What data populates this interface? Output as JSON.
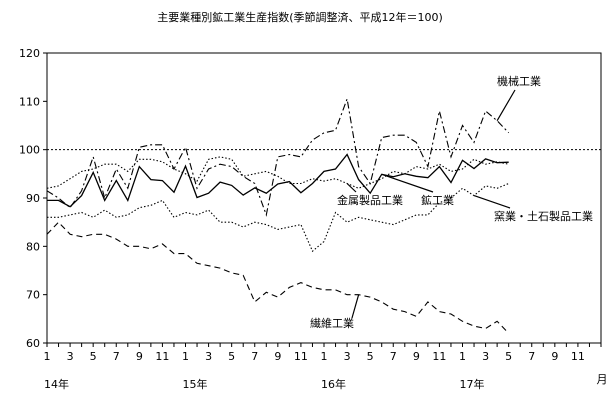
{
  "chart_data": {
    "type": "line",
    "title": "主要業種別鉱工業生産指数(季節調整済、平成12年＝100)",
    "xlabel": "",
    "ylabel": "",
    "ylim": [
      60,
      120
    ],
    "y_ticks": [
      "60",
      "70",
      "80",
      "90",
      "100",
      "110",
      "120"
    ],
    "x_tick_labels": [
      "1",
      "3",
      "5",
      "7",
      "9",
      "11",
      "1",
      "3",
      "5",
      "7",
      "9",
      "11",
      "1",
      "3",
      "5",
      "7",
      "9",
      "11",
      "1",
      "3",
      "5",
      "7",
      "9",
      "11"
    ],
    "year_labels": [
      {
        "label": "14年",
        "month_index": 0
      },
      {
        "label": "15年",
        "month_index": 12
      },
      {
        "label": "16年",
        "month_index": 24
      },
      {
        "label": "17年",
        "month_index": 36
      }
    ],
    "month_unit": "月",
    "n_months": 48,
    "reference_line": 100,
    "grid": false,
    "series": [
      {
        "name": "鉱工業",
        "style": "solid",
        "values": [
          89.5,
          89.5,
          88.2,
          90.5,
          95.3,
          89.5,
          93.6,
          89.5,
          96.5,
          93.8,
          93.6,
          91.2,
          96.6,
          90.1,
          91.0,
          93.3,
          92.6,
          90.6,
          92.1,
          91.0,
          92.9,
          93.4,
          91.1,
          93.0,
          95.5,
          96.0,
          99.0,
          93.8,
          91.0,
          94.9,
          94.4,
          95.0,
          94.5,
          94.2,
          96.5,
          93.2,
          97.8,
          96.1,
          98.1,
          97.3,
          97.4
        ]
      },
      {
        "name": "機械工業",
        "style": "dash-dot",
        "values": [
          91.5,
          90.0,
          88.0,
          91.5,
          98.5,
          90.0,
          96.0,
          92.0,
          100.5,
          101.0,
          101.0,
          96.0,
          100.5,
          92.0,
          96.0,
          97.0,
          96.5,
          94.5,
          93.0,
          86.5,
          98.5,
          99.0,
          98.5,
          102.0,
          103.5,
          104.0,
          110.5,
          96.5,
          93.0,
          102.5,
          103.0,
          103.0,
          101.5,
          96.5,
          108.0,
          98.5,
          105.0,
          101.5,
          108.0,
          106.0,
          103.5
        ]
      },
      {
        "name": "金属製品工業",
        "style": "dotted",
        "values": [
          92.0,
          92.5,
          94.0,
          95.5,
          96.0,
          97.0,
          97.0,
          95.5,
          98.0,
          98.0,
          97.5,
          96.0,
          95.0,
          93.5,
          98.0,
          98.5,
          98.0,
          94.5,
          95.0,
          95.5,
          94.5,
          93.0,
          93.0,
          94.0,
          93.5,
          94.0,
          93.0,
          92.0,
          93.0,
          94.0,
          95.5,
          95.0,
          96.5,
          96.0,
          97.0,
          95.5,
          96.0,
          98.0,
          97.0,
          97.5,
          97.0
        ]
      },
      {
        "name": "窯業・土石製品工業",
        "style": "dotted",
        "values": [
          86.0,
          86.0,
          86.5,
          87.0,
          86.0,
          87.5,
          86.0,
          86.5,
          88.0,
          88.5,
          89.5,
          86.0,
          87.0,
          86.5,
          87.5,
          85.0,
          85.0,
          84.0,
          85.0,
          84.5,
          83.5,
          84.0,
          84.5,
          79.0,
          81.0,
          87.0,
          85.0,
          86.0,
          85.5,
          85.0,
          84.5,
          85.5,
          86.5,
          86.5,
          89.0,
          90.0,
          92.0,
          90.5,
          92.5,
          92.0,
          93.0
        ]
      },
      {
        "name": "繊維工業",
        "style": "dashed",
        "values": [
          82.5,
          85.0,
          82.5,
          82.0,
          82.5,
          82.5,
          81.5,
          80.0,
          80.0,
          79.5,
          80.5,
          78.5,
          78.5,
          76.5,
          76.0,
          75.5,
          74.5,
          74.0,
          68.5,
          70.5,
          69.5,
          71.5,
          72.5,
          71.5,
          71.0,
          71.0,
          70.0,
          70.0,
          69.5,
          68.5,
          67.0,
          66.5,
          65.5,
          68.5,
          66.5,
          66.0,
          64.5,
          63.5,
          63.0,
          64.5,
          62.0
        ]
      }
    ],
    "annotations": [
      {
        "text": "機械工業",
        "series": "機械工業"
      },
      {
        "text": "金属製品工業",
        "series": "金属製品工業"
      },
      {
        "text": "鉱工業",
        "series": "鉱工業"
      },
      {
        "text": "窯業・土石製品工業",
        "series": "窯業・土石製品工業"
      },
      {
        "text": "繊維工業",
        "series": "繊維工業"
      }
    ]
  }
}
